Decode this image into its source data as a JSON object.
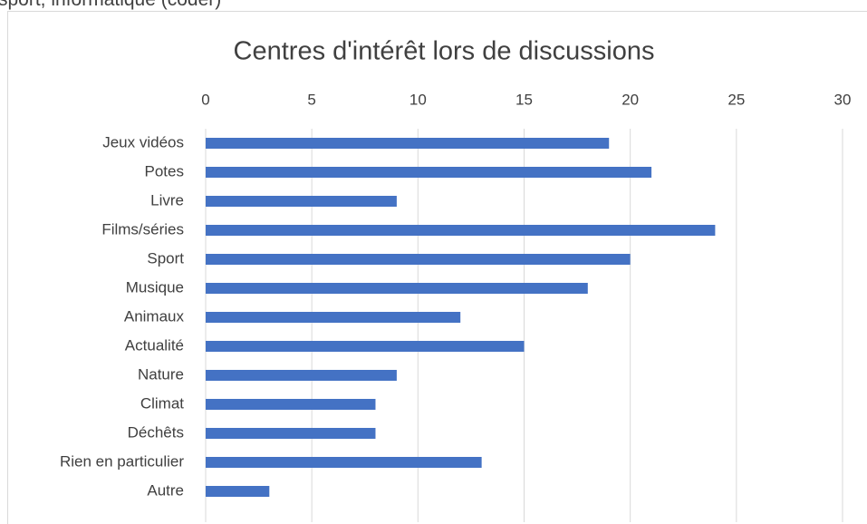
{
  "header": {
    "text": "sport, informatique (coder)"
  },
  "chart_data": {
    "type": "bar",
    "orientation": "horizontal",
    "title": "Centres d'intérêt lors de discussions",
    "categories": [
      "Jeux vidéos",
      "Potes",
      "Livre",
      "Films/séries",
      "Sport",
      "Musique",
      "Animaux",
      "Actualité",
      "Nature",
      "Climat",
      "Déchêts",
      "Rien en particulier",
      "Autre"
    ],
    "values": [
      19,
      21,
      9,
      24,
      20,
      18,
      12,
      15,
      9,
      8,
      8,
      13,
      3
    ],
    "color": "#4472c4",
    "xlim": [
      0,
      30
    ],
    "xticks": [
      0,
      5,
      10,
      15,
      20,
      25,
      30
    ],
    "grid": true
  }
}
